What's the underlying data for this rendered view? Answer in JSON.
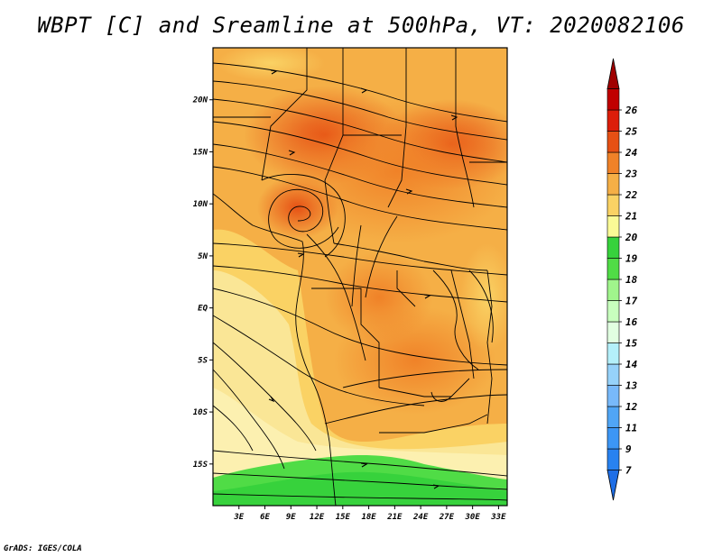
{
  "title": "WBPT [C] and Sreamline at 500hPa, VT: 2020082106",
  "footer": "GrADS: IGES/COLA",
  "map": {
    "lat_labels": [
      "20N",
      "15N",
      "10N",
      "5N",
      "EQ",
      "5S",
      "10S",
      "15S"
    ],
    "lon_labels": [
      "3E",
      "6E",
      "9E",
      "12E",
      "15E",
      "18E",
      "21E",
      "24E",
      "27E",
      "30E",
      "33E"
    ],
    "lat_values": [
      20,
      15,
      10,
      5,
      0,
      -5,
      -10,
      -15
    ],
    "lon_values": [
      3,
      6,
      9,
      12,
      15,
      18,
      21,
      24,
      27,
      30,
      33
    ],
    "lat_range": [
      -19,
      25
    ],
    "lon_range": [
      0,
      34
    ],
    "variable": "WBPT",
    "units": "C",
    "level": "500hPa"
  },
  "colorbar": {
    "labels": [
      "7",
      "9",
      "11",
      "12",
      "13",
      "14",
      "15",
      "16",
      "17",
      "18",
      "19",
      "20",
      "21",
      "22",
      "23",
      "24",
      "25",
      "26"
    ],
    "colors": [
      "#1e6ee6",
      "#2882f0",
      "#3c96f5",
      "#50a5f5",
      "#78b9fa",
      "#96d2fa",
      "#b4f0fa",
      "#e1ffe1",
      "#c8ffbe",
      "#a0f58c",
      "#50dc46",
      "#37d23c",
      "#fafa96",
      "#fad264",
      "#f5af46",
      "#f08228",
      "#e65014",
      "#dc1e0a",
      "#c00000",
      "#a00000"
    ]
  }
}
